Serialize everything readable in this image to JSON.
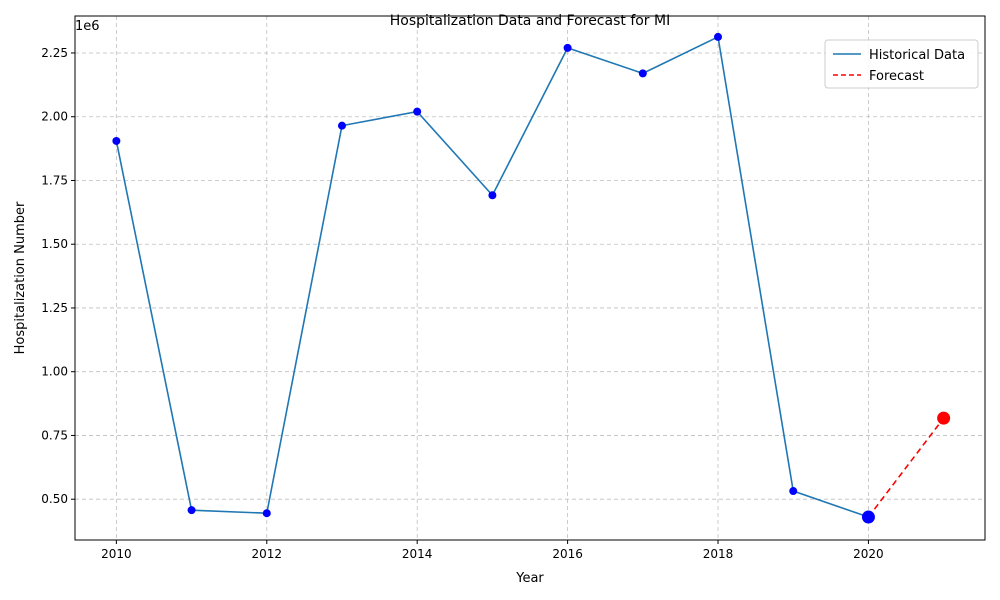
{
  "chart_data": {
    "type": "line",
    "title": "Hospitalization Data and Forecast for MI",
    "xlabel": "Year",
    "ylabel": "Hospitalization Number",
    "y_offset_label": "1e6",
    "xlim": [
      2009.45,
      2021.55
    ],
    "ylim": [
      340000,
      2395000
    ],
    "x_ticks": [
      2010,
      2012,
      2014,
      2016,
      2018,
      2020
    ],
    "x_tick_labels": [
      "2010",
      "2012",
      "2014",
      "2016",
      "2018",
      "2020"
    ],
    "y_ticks": [
      500000,
      750000,
      1000000,
      1250000,
      1500000,
      1750000,
      2000000,
      2250000
    ],
    "y_tick_labels": [
      "0.50",
      "0.75",
      "1.00",
      "1.25",
      "1.50",
      "1.75",
      "2.00",
      "2.25"
    ],
    "grid": true,
    "legend_position": "top-right",
    "series": [
      {
        "name": "Historical Data",
        "style": "solid",
        "color": "#1f77b4",
        "marker_color": "#0000ff",
        "x": [
          2010,
          2011,
          2012,
          2013,
          2014,
          2015,
          2016,
          2017,
          2018,
          2019,
          2020
        ],
        "y": [
          1905000,
          457000,
          445000,
          1965000,
          2020000,
          1692000,
          2270000,
          2170000,
          2313000,
          532000,
          430000
        ]
      },
      {
        "name": "Forecast",
        "style": "dashed",
        "color": "#ff0000",
        "marker_color": "#ff0000",
        "x": [
          2020,
          2021
        ],
        "y": [
          430000,
          818000
        ]
      }
    ]
  }
}
